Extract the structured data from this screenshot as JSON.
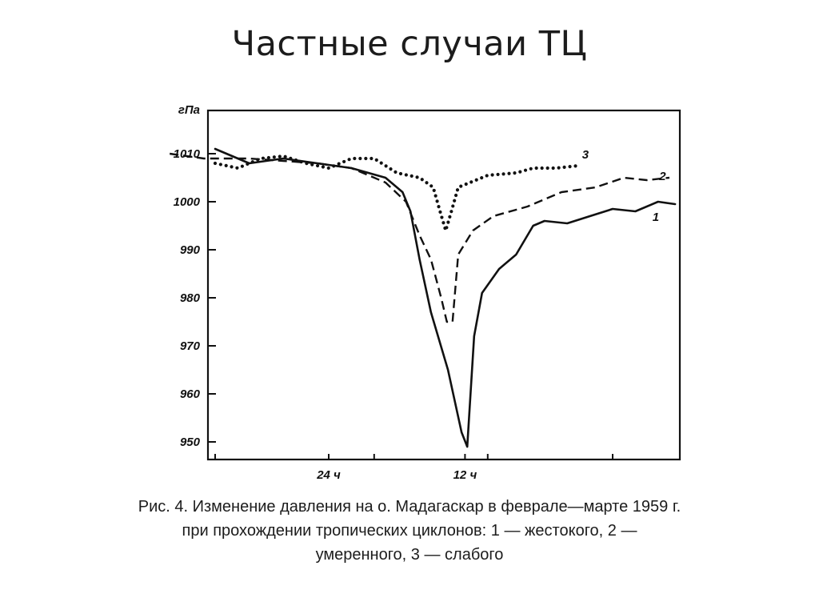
{
  "slide": {
    "title": "Частные случаи ТЦ"
  },
  "caption": {
    "line1": "Рис. 4. Изменение давления на о. Мадагаскар в феврале—марте 1959 г.",
    "line2": "при прохождении тропических циклонов: 1 — жестокого, 2 —",
    "line3": "умеренного, 3 — слабого"
  },
  "colors": {
    "ink": "#111111",
    "background": "#ffffff"
  },
  "chart_data": {
    "type": "line",
    "title": "",
    "xlabel": "",
    "ylabel": "гПа",
    "ylim": [
      950,
      1015
    ],
    "xlim": [
      -36,
      10
    ],
    "x_unit": "hours relative to pressure minimum",
    "y_ticks": [
      1010,
      1000,
      990,
      980,
      970,
      960,
      950
    ],
    "y_tick_labels": [
      "1010",
      "1000",
      "990",
      "980",
      "970",
      "960",
      "950"
    ],
    "x_tick_labels": [
      {
        "x": -24,
        "label": "24 ч"
      },
      {
        "x": -12,
        "label": "12 ч"
      }
    ],
    "x_minor_ticks": [
      -34,
      -20,
      -10,
      1
    ],
    "grid": false,
    "legend": "inline curve numbers",
    "series": [
      {
        "name": "1",
        "style": "solid",
        "points": [
          [
            -34,
            1011
          ],
          [
            -31,
            1008
          ],
          [
            -28,
            1009
          ],
          [
            -25,
            1008
          ],
          [
            -22,
            1007
          ],
          [
            -19,
            1005
          ],
          [
            -17.5,
            1002
          ],
          [
            -16.8,
            998
          ],
          [
            -16,
            988
          ],
          [
            -15,
            977
          ],
          [
            -13.5,
            965
          ],
          [
            -12.3,
            952
          ],
          [
            -11.8,
            949
          ],
          [
            -11.2,
            972
          ],
          [
            -10.5,
            981
          ],
          [
            -9,
            986
          ],
          [
            -7.5,
            989
          ],
          [
            -6,
            995
          ],
          [
            -5,
            996
          ],
          [
            -3,
            995.5
          ],
          [
            -1,
            997
          ],
          [
            1,
            998.5
          ],
          [
            3,
            998
          ],
          [
            5,
            1000
          ],
          [
            6.5,
            999.5
          ]
        ],
        "label_point": [
          4.8,
          996
        ]
      },
      {
        "name": "2",
        "style": "dashed",
        "points": [
          [
            -38,
            1010
          ],
          [
            -35,
            1009
          ],
          [
            -31,
            1009
          ],
          [
            -28,
            1008.5
          ],
          [
            -25,
            1008
          ],
          [
            -22,
            1007
          ],
          [
            -19,
            1004
          ],
          [
            -17.2,
            1000
          ],
          [
            -16,
            993
          ],
          [
            -15,
            988
          ],
          [
            -14.1,
            980
          ],
          [
            -13.6,
            975
          ],
          [
            -13.1,
            975
          ],
          [
            -12.6,
            989
          ],
          [
            -11.3,
            994
          ],
          [
            -9.5,
            997
          ],
          [
            -6.5,
            999
          ],
          [
            -3.5,
            1002
          ],
          [
            -0.5,
            1003
          ],
          [
            2,
            1005
          ],
          [
            4,
            1004.5
          ],
          [
            6,
            1005
          ]
        ],
        "label_point": [
          5.4,
          1004.5
        ]
      },
      {
        "name": "3",
        "style": "dotted",
        "points": [
          [
            -34,
            1008
          ],
          [
            -32,
            1007
          ],
          [
            -30,
            1009
          ],
          [
            -28,
            1009.5
          ],
          [
            -26,
            1008
          ],
          [
            -24,
            1007
          ],
          [
            -22,
            1009
          ],
          [
            -20,
            1009
          ],
          [
            -18,
            1006
          ],
          [
            -16,
            1005
          ],
          [
            -14.8,
            1003
          ],
          [
            -14.2,
            998
          ],
          [
            -13.7,
            994
          ],
          [
            -13.2,
            998
          ],
          [
            -12.6,
            1003
          ],
          [
            -10,
            1005.5
          ],
          [
            -7.5,
            1006
          ],
          [
            -6,
            1007
          ],
          [
            -4,
            1007
          ],
          [
            -2,
            1007.5
          ]
        ],
        "label_point": [
          -1.4,
          1009
        ]
      }
    ]
  }
}
